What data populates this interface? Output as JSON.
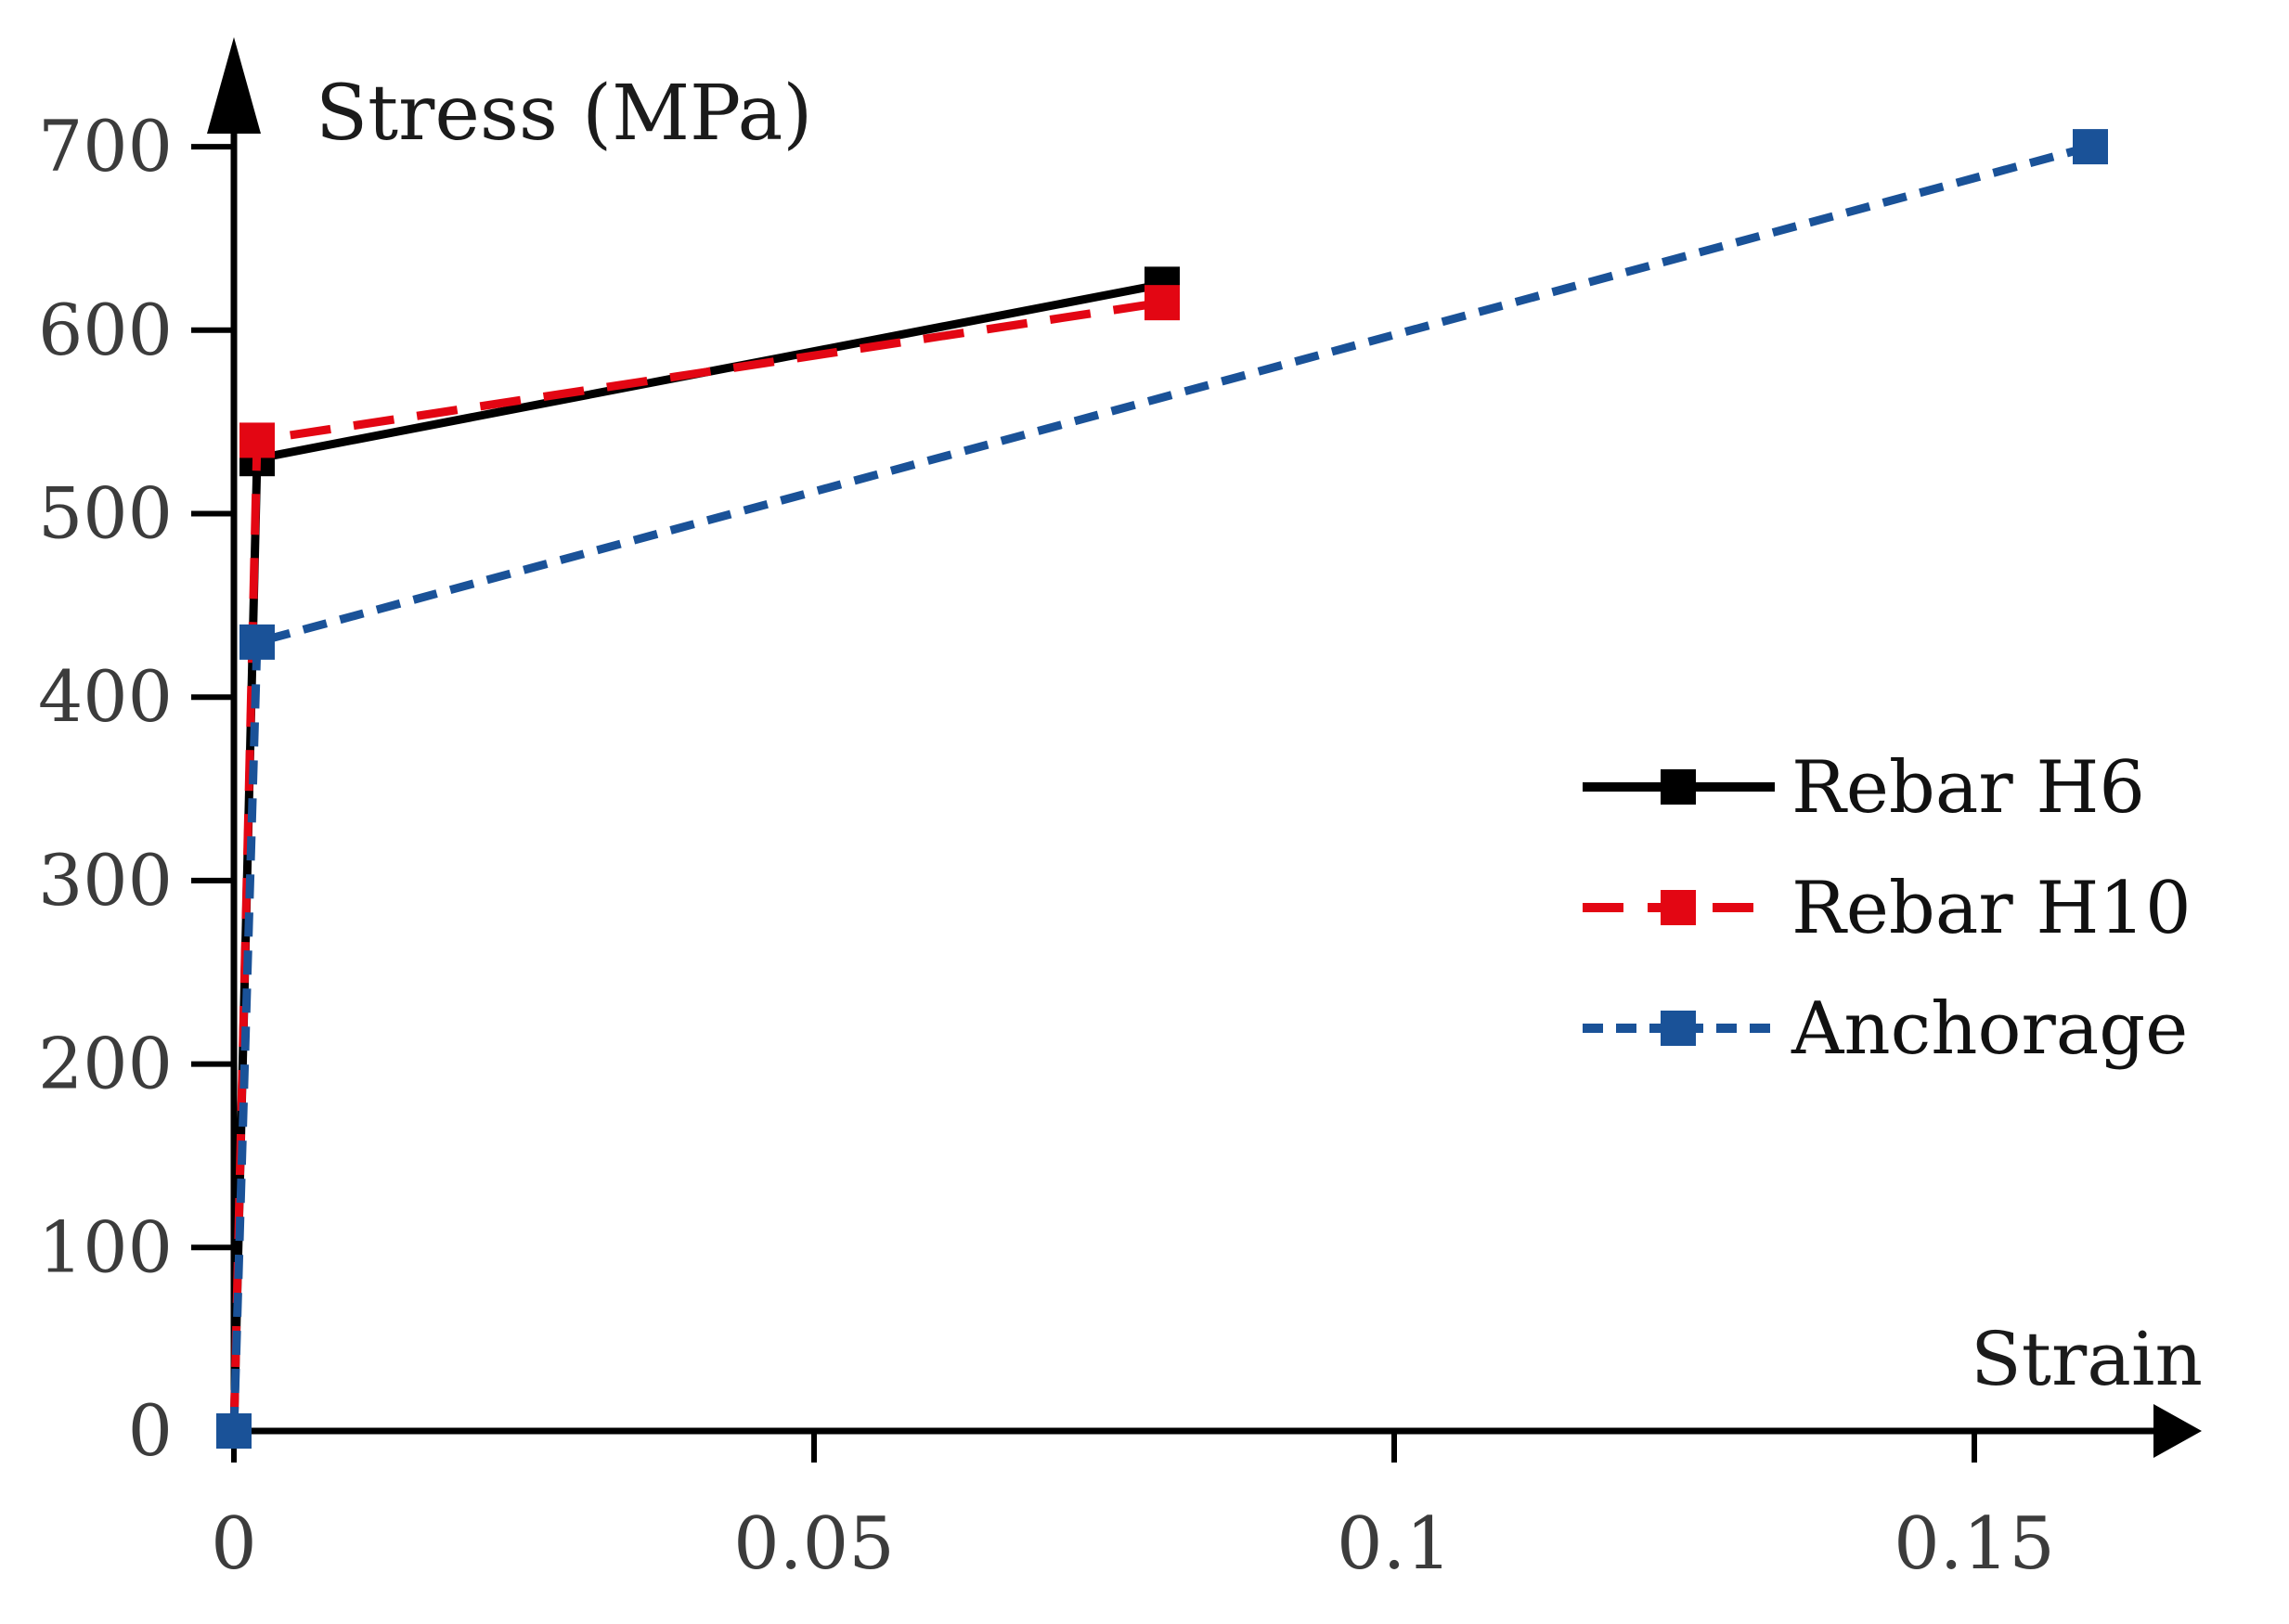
{
  "chart_data": {
    "type": "line",
    "title": "",
    "xlabel": "Strain",
    "ylabel": "Stress (MPa)",
    "xlim": [
      0,
      0.17
    ],
    "ylim": [
      0,
      745
    ],
    "grid": false,
    "x_ticks": [
      0,
      0.05,
      0.1,
      0.15
    ],
    "x_tick_labels": [
      "0",
      "0.05",
      "0.1",
      "0.15"
    ],
    "y_ticks": [
      0,
      100,
      200,
      300,
      400,
      500,
      600,
      700
    ],
    "y_tick_labels": [
      "0",
      "100",
      "200",
      "300",
      "400",
      "500",
      "600",
      "700"
    ],
    "legend_position": "right-center",
    "series": [
      {
        "name": "Rebar H6",
        "color": "#000000",
        "line_style": "solid",
        "marker": "square",
        "points": [
          [
            0,
            0
          ],
          [
            0.002,
            530
          ],
          [
            0.08,
            625
          ]
        ]
      },
      {
        "name": "Rebar H10",
        "color": "#e30613",
        "line_style": "dashed",
        "marker": "square",
        "points": [
          [
            0,
            0
          ],
          [
            0.002,
            540
          ],
          [
            0.08,
            615
          ]
        ]
      },
      {
        "name": "Anchorage",
        "color": "#1a5298",
        "line_style": "dashed-short",
        "marker": "square",
        "points": [
          [
            0,
            0
          ],
          [
            0.002,
            430
          ],
          [
            0.16,
            700
          ]
        ]
      }
    ]
  },
  "figure": {
    "background_color": "#ffffff",
    "axis_color": "#000000",
    "tick_label_color": "#3c3c3c"
  }
}
